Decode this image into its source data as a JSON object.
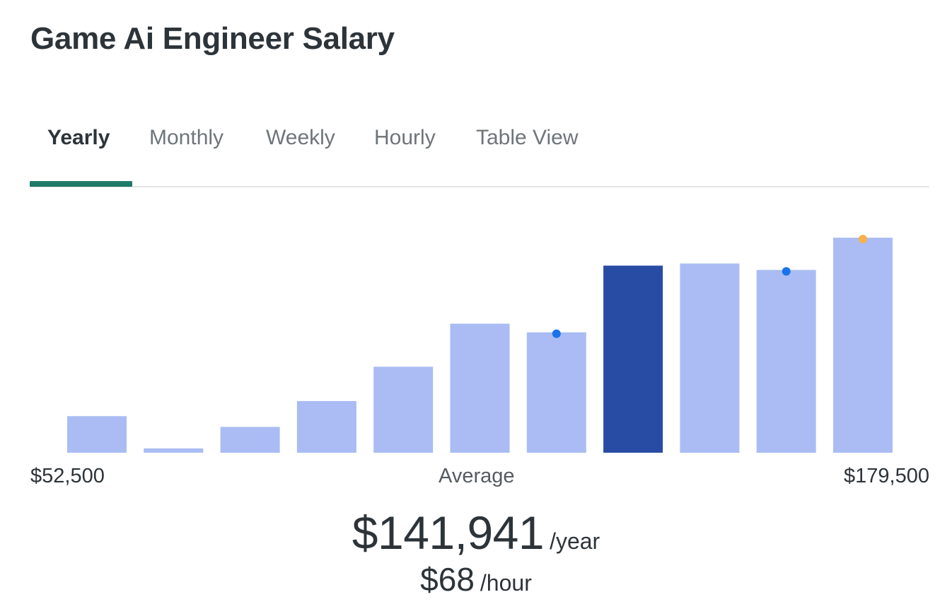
{
  "page_title": "Game Ai Engineer Salary",
  "tabs": [
    {
      "label": "Yearly",
      "active": true
    },
    {
      "label": "Monthly",
      "active": false
    },
    {
      "label": "Weekly",
      "active": false
    },
    {
      "label": "Hourly",
      "active": false
    },
    {
      "label": "Table View",
      "active": false
    }
  ],
  "colors": {
    "bar": "#aabcf3",
    "bar_highlight": "#284ba4",
    "marker_blue": "#1a73e8",
    "marker_orange": "#f9b04f",
    "tab_underline": "#1f7a68"
  },
  "axis": {
    "min_label": "$52,500",
    "center_label": "Average",
    "max_label": "$179,500"
  },
  "summary": {
    "yearly_value": "$141,941",
    "yearly_unit": "/year",
    "hourly_value": "$68",
    "hourly_unit": "/hour"
  },
  "chart_data": {
    "type": "bar",
    "x_range": [
      52500,
      179500
    ],
    "values": [
      17,
      2,
      12,
      24,
      40,
      60,
      56,
      87,
      88,
      85,
      100
    ],
    "highlight_index": 7,
    "markers": [
      {
        "bar_index": 6,
        "color": "blue"
      },
      {
        "bar_index": 9,
        "color": "blue"
      },
      {
        "bar_index": 10,
        "color": "orange"
      }
    ],
    "grid": false,
    "legend": "none"
  }
}
